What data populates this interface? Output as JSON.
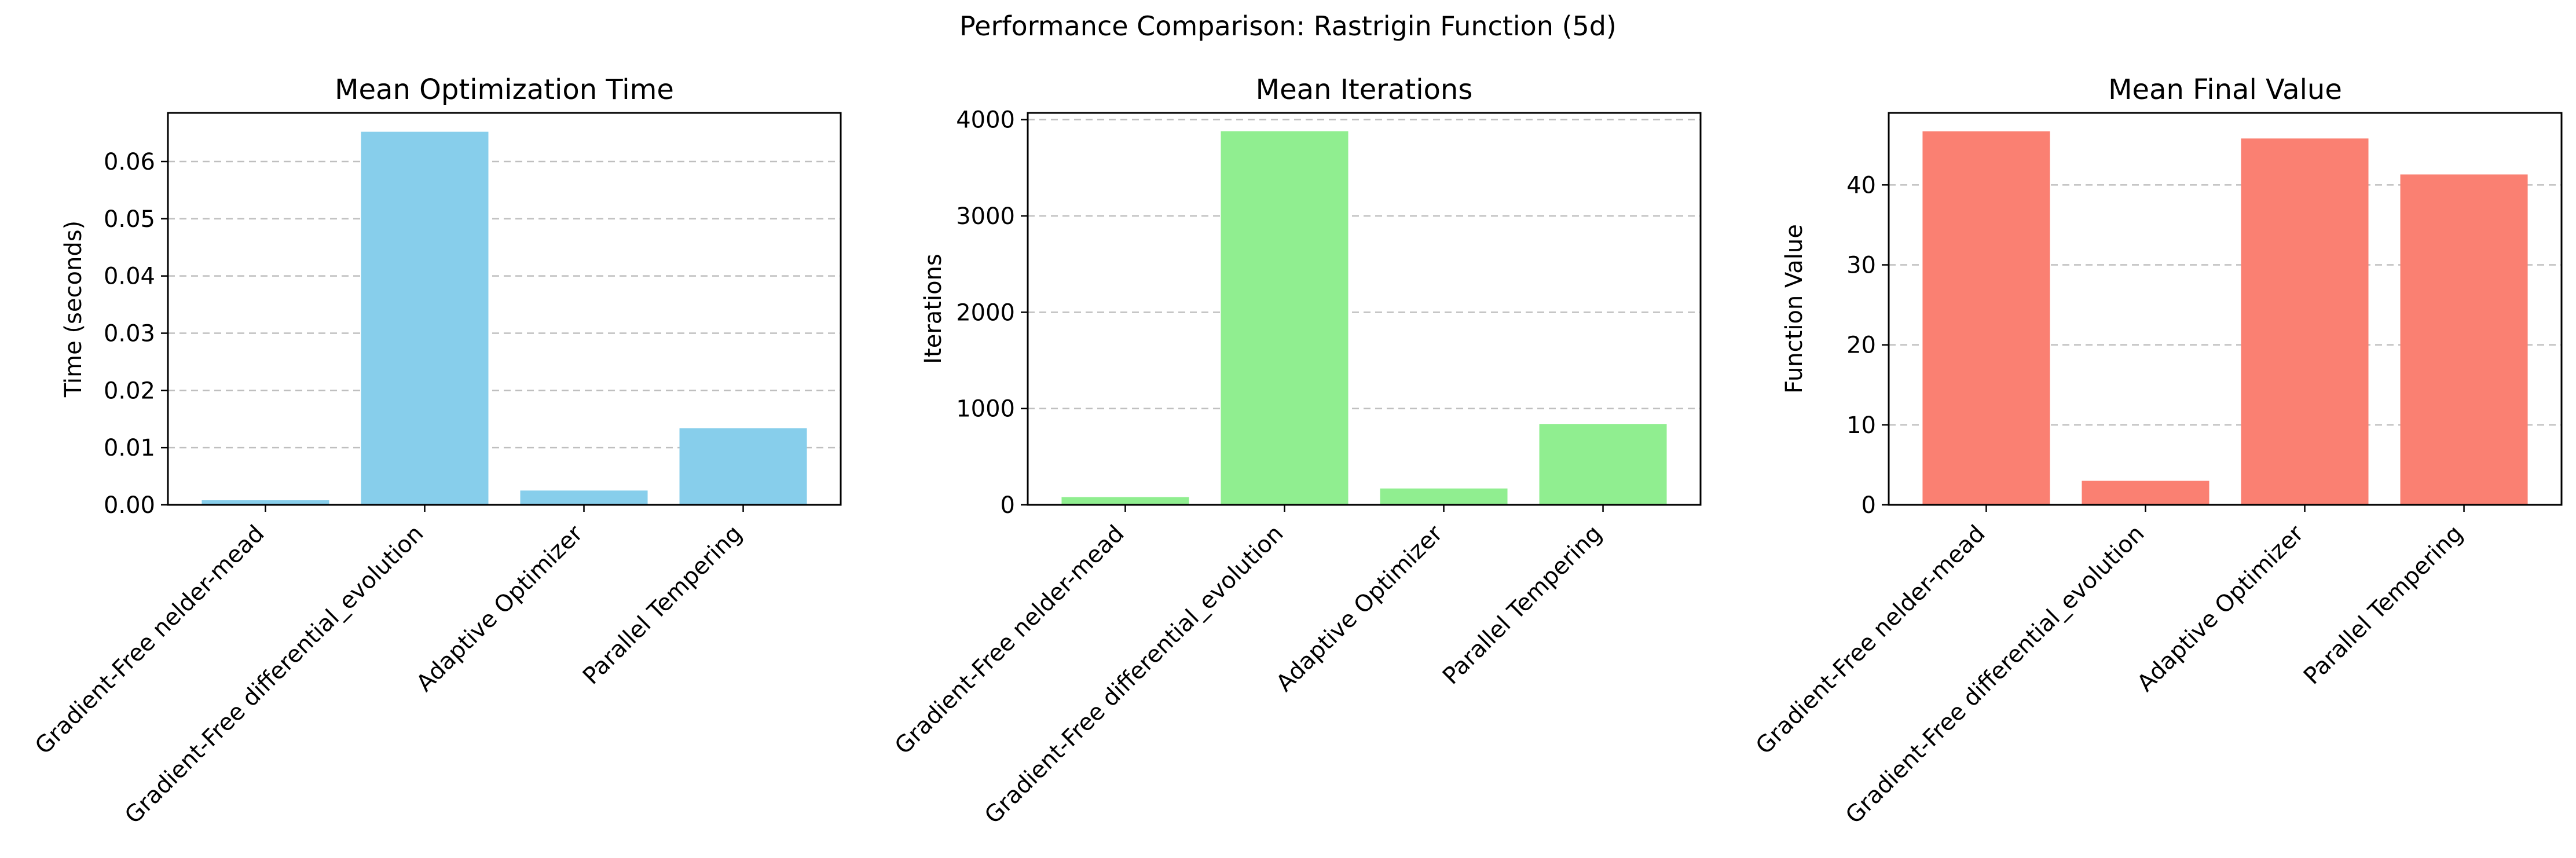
{
  "figure": {
    "title": "Performance Comparison: Rastrigin Function (5d)"
  },
  "chart_data": [
    {
      "type": "bar",
      "title": "Mean Optimization Time",
      "xlabel": "",
      "ylabel": "Time (seconds)",
      "categories": [
        "Gradient-Free nelder-mead",
        "Gradient-Free differential_evolution",
        "Adaptive Optimizer",
        "Parallel Tempering"
      ],
      "values": [
        0.0008,
        0.0652,
        0.0025,
        0.0134
      ],
      "ylim": [
        0,
        0.0685
      ],
      "yticks": [
        0.0,
        0.01,
        0.02,
        0.03,
        0.04,
        0.05,
        0.06
      ],
      "ytick_labels": [
        "0.00",
        "0.01",
        "0.02",
        "0.03",
        "0.04",
        "0.05",
        "0.06"
      ],
      "color": "#87CEEB",
      "grid": "y-dashed"
    },
    {
      "type": "bar",
      "title": "Mean Iterations",
      "xlabel": "",
      "ylabel": "Iterations",
      "categories": [
        "Gradient-Free nelder-mead",
        "Gradient-Free differential_evolution",
        "Adaptive Optimizer",
        "Parallel Tempering"
      ],
      "values": [
        80,
        3880,
        170,
        840
      ],
      "ylim": [
        0,
        4070
      ],
      "yticks": [
        0,
        1000,
        2000,
        3000,
        4000
      ],
      "ytick_labels": [
        "0",
        "1000",
        "2000",
        "3000",
        "4000"
      ],
      "color": "#90EE90",
      "grid": "y-dashed"
    },
    {
      "type": "bar",
      "title": "Mean Final Value",
      "xlabel": "",
      "ylabel": "Function Value",
      "categories": [
        "Gradient-Free nelder-mead",
        "Gradient-Free differential_evolution",
        "Adaptive Optimizer",
        "Parallel Tempering"
      ],
      "values": [
        46.7,
        3.0,
        45.8,
        41.3
      ],
      "ylim": [
        0,
        49.0
      ],
      "yticks": [
        0,
        10,
        20,
        30,
        40
      ],
      "ytick_labels": [
        "0",
        "10",
        "20",
        "30",
        "40"
      ],
      "color": "#FA8072",
      "grid": "y-dashed"
    }
  ]
}
